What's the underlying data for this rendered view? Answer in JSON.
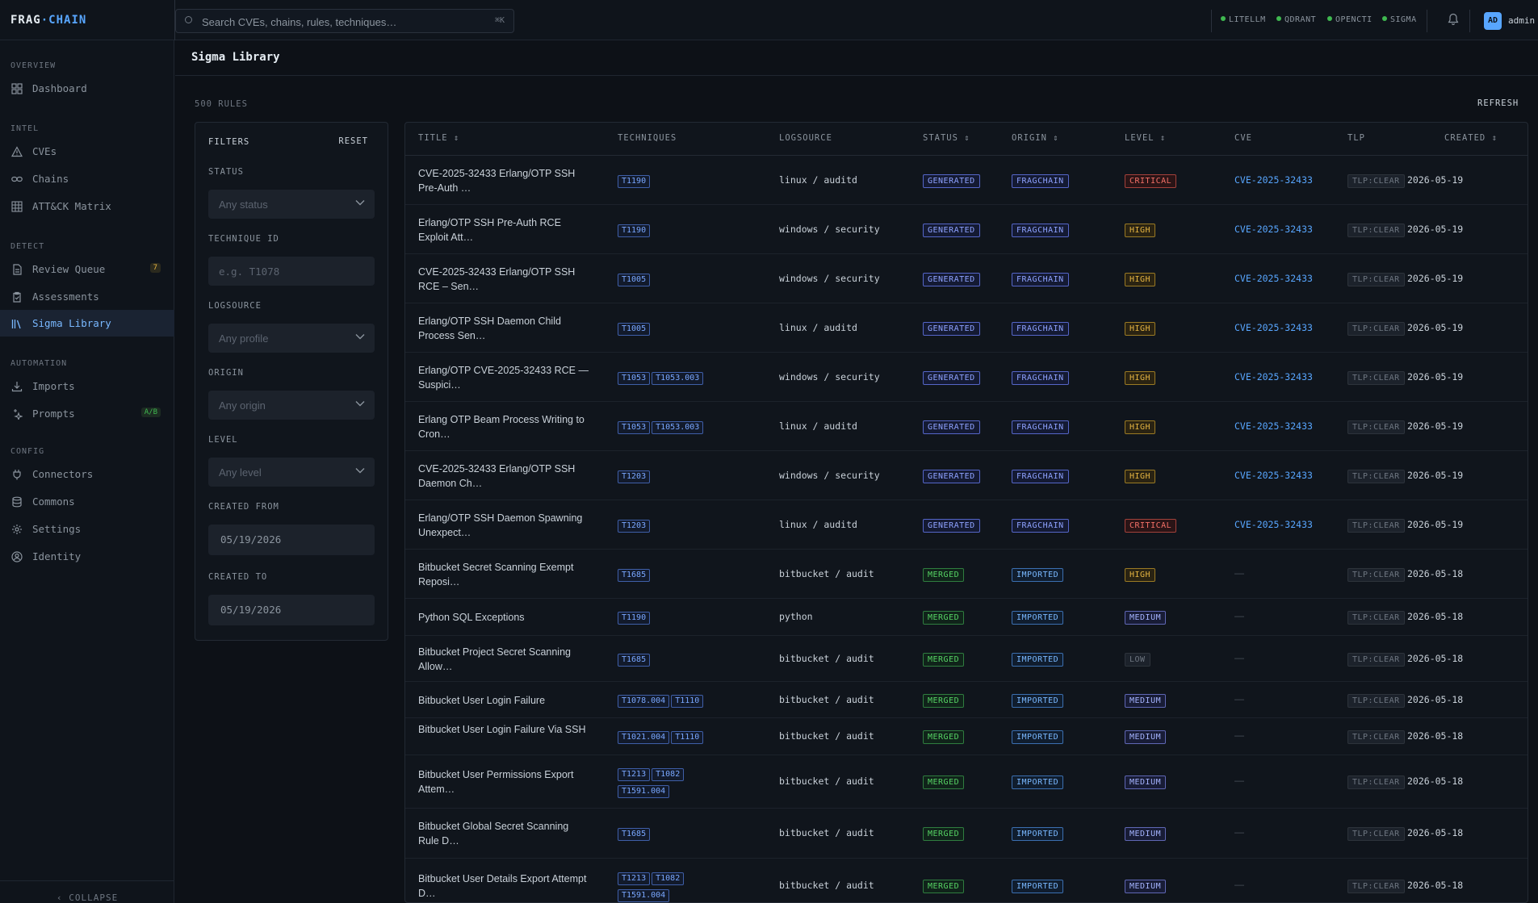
{
  "topbar": {
    "logo_part1": "FRAG",
    "logo_sep": "·",
    "logo_part2": "CHAIN",
    "search_placeholder": "Search CVEs, chains, rules, techniques…",
    "search_shortcut": "⌘K",
    "connectors": [
      {
        "label": "LITELLM",
        "status": "online"
      },
      {
        "label": "QDRANT",
        "status": "online"
      },
      {
        "label": "OPENCTI",
        "status": "online"
      },
      {
        "label": "SIGMA",
        "status": "online"
      }
    ],
    "user_initials": "AD",
    "user_name": "admin"
  },
  "sidebar": {
    "sections": [
      {
        "label": "OVERVIEW",
        "items": [
          {
            "label": "Dashboard",
            "icon": "grid-icon"
          }
        ]
      },
      {
        "label": "INTEL",
        "items": [
          {
            "label": "CVEs",
            "icon": "warning-triangle-icon"
          },
          {
            "label": "Chains",
            "icon": "link-icon"
          },
          {
            "label": "ATT&CK Matrix",
            "icon": "matrix-icon"
          }
        ]
      },
      {
        "label": "DETECT",
        "items": [
          {
            "label": "Review Queue",
            "icon": "document-icon",
            "badge": "7"
          },
          {
            "label": "Assessments",
            "icon": "clipboard-icon"
          },
          {
            "label": "Sigma Library",
            "icon": "library-icon",
            "active": true
          }
        ]
      },
      {
        "label": "AUTOMATION",
        "items": [
          {
            "label": "Imports",
            "icon": "download-icon"
          },
          {
            "label": "Prompts",
            "icon": "sparkle-icon",
            "badge": "A/B"
          }
        ]
      },
      {
        "label": "CONFIG",
        "items": [
          {
            "label": "Connectors",
            "icon": "plug-icon"
          },
          {
            "label": "Commons",
            "icon": "database-icon"
          },
          {
            "label": "Settings",
            "icon": "gear-icon"
          },
          {
            "label": "Identity",
            "icon": "user-circle-icon"
          }
        ]
      }
    ],
    "collapse_label": "‹ COLLAPSE"
  },
  "page": {
    "title": "Sigma Library",
    "rule_count": "500 RULES",
    "refresh_label": "REFRESH"
  },
  "filters": {
    "heading": "FILTERS",
    "reset_label": "RESET",
    "status_label": "STATUS",
    "status_placeholder": "Any status",
    "technique_label": "TECHNIQUE ID",
    "technique_placeholder": "e.g. T1078",
    "logsource_label": "LOGSOURCE",
    "logsource_placeholder": "Any profile",
    "origin_label": "ORIGIN",
    "origin_placeholder": "Any origin",
    "level_label": "LEVEL",
    "level_placeholder": "Any level",
    "created_from_label": "CREATED FROM",
    "created_from_value": "05/19/2026",
    "created_to_label": "CREATED TO",
    "created_to_value": "05/19/2026"
  },
  "table": {
    "columns": [
      "TITLE ⇕",
      "TECHNIQUES",
      "LOGSOURCE",
      "STATUS ⇕",
      "ORIGIN ⇕",
      "LEVEL ⇕",
      "CVE",
      "TLP",
      "CREATED ⇕"
    ],
    "rows": [
      {
        "title": "CVE-2025-32433 Erlang/OTP SSH Pre-Auth …",
        "techniques": [
          "T1190"
        ],
        "logsource": "linux / auditd",
        "status": "GENERATED",
        "origin": "FRAGCHAIN",
        "level": "CRITICAL",
        "cve": "CVE-2025-32433",
        "tlp": "TLP:CLEAR",
        "created": "2026-05-19"
      },
      {
        "title": "Erlang/OTP SSH Pre-Auth RCE Exploit Att…",
        "techniques": [
          "T1190"
        ],
        "logsource": "windows / security",
        "status": "GENERATED",
        "origin": "FRAGCHAIN",
        "level": "HIGH",
        "cve": "CVE-2025-32433",
        "tlp": "TLP:CLEAR",
        "created": "2026-05-19"
      },
      {
        "title": "CVE-2025-32433 Erlang/OTP SSH RCE – Sen…",
        "techniques": [
          "T1005"
        ],
        "logsource": "windows / security",
        "status": "GENERATED",
        "origin": "FRAGCHAIN",
        "level": "HIGH",
        "cve": "CVE-2025-32433",
        "tlp": "TLP:CLEAR",
        "created": "2026-05-19"
      },
      {
        "title": "Erlang/OTP SSH Daemon Child Process Sen…",
        "techniques": [
          "T1005"
        ],
        "logsource": "linux / auditd",
        "status": "GENERATED",
        "origin": "FRAGCHAIN",
        "level": "HIGH",
        "cve": "CVE-2025-32433",
        "tlp": "TLP:CLEAR",
        "created": "2026-05-19"
      },
      {
        "title": "Erlang/OTP CVE-2025-32433 RCE — Suspici…",
        "techniques": [
          "T1053",
          "T1053.003"
        ],
        "logsource": "windows / security",
        "status": "GENERATED",
        "origin": "FRAGCHAIN",
        "level": "HIGH",
        "cve": "CVE-2025-32433",
        "tlp": "TLP:CLEAR",
        "created": "2026-05-19"
      },
      {
        "title": "Erlang OTP Beam Process Writing to Cron…",
        "techniques": [
          "T1053",
          "T1053.003"
        ],
        "logsource": "linux / auditd",
        "status": "GENERATED",
        "origin": "FRAGCHAIN",
        "level": "HIGH",
        "cve": "CVE-2025-32433",
        "tlp": "TLP:CLEAR",
        "created": "2026-05-19"
      },
      {
        "title": "CVE-2025-32433 Erlang/OTP SSH Daemon Ch…",
        "techniques": [
          "T1203"
        ],
        "logsource": "windows / security",
        "status": "GENERATED",
        "origin": "FRAGCHAIN",
        "level": "HIGH",
        "cve": "CVE-2025-32433",
        "tlp": "TLP:CLEAR",
        "created": "2026-05-19"
      },
      {
        "title": "Erlang/OTP SSH Daemon Spawning Unexpect…",
        "techniques": [
          "T1203"
        ],
        "logsource": "linux / auditd",
        "status": "GENERATED",
        "origin": "FRAGCHAIN",
        "level": "CRITICAL",
        "cve": "CVE-2025-32433",
        "tlp": "TLP:CLEAR",
        "created": "2026-05-19"
      },
      {
        "title": "Bitbucket Secret Scanning Exempt Reposi…",
        "techniques": [
          "T1685"
        ],
        "logsource": "bitbucket / audit",
        "status": "MERGED",
        "origin": "IMPORTED",
        "level": "HIGH",
        "cve": "—",
        "tlp": "TLP:CLEAR",
        "created": "2026-05-18"
      },
      {
        "title": "Python SQL Exceptions",
        "techniques": [
          "T1190"
        ],
        "logsource": "python",
        "status": "MERGED",
        "origin": "IMPORTED",
        "level": "MEDIUM",
        "cve": "—",
        "tlp": "TLP:CLEAR",
        "created": "2026-05-18"
      },
      {
        "title": "Bitbucket Project Secret Scanning Allow…",
        "techniques": [
          "T1685"
        ],
        "logsource": "bitbucket / audit",
        "status": "MERGED",
        "origin": "IMPORTED",
        "level": "LOW",
        "cve": "—",
        "tlp": "TLP:CLEAR",
        "created": "2026-05-18"
      },
      {
        "title": "Bitbucket User Login Failure",
        "techniques": [
          "T1078.004",
          "T1110"
        ],
        "logsource": "bitbucket / audit",
        "status": "MERGED",
        "origin": "IMPORTED",
        "level": "MEDIUM",
        "cve": "—",
        "tlp": "TLP:CLEAR",
        "created": "2026-05-18"
      },
      {
        "title": "Bitbucket User Login Failure Via SSH",
        "techniques": [
          "T1021.004",
          "T1110"
        ],
        "logsource": "bitbucket / audit",
        "status": "MERGED",
        "origin": "IMPORTED",
        "level": "MEDIUM",
        "cve": "—",
        "tlp": "TLP:CLEAR",
        "created": "2026-05-18"
      },
      {
        "title": "Bitbucket User Permissions Export Attem…",
        "techniques": [
          "T1213",
          "T1082",
          "T1591.004"
        ],
        "logsource": "bitbucket / audit",
        "status": "MERGED",
        "origin": "IMPORTED",
        "level": "MEDIUM",
        "cve": "—",
        "tlp": "TLP:CLEAR",
        "created": "2026-05-18"
      },
      {
        "title": "Bitbucket Global Secret Scanning Rule D…",
        "techniques": [
          "T1685"
        ],
        "logsource": "bitbucket / audit",
        "status": "MERGED",
        "origin": "IMPORTED",
        "level": "MEDIUM",
        "cve": "—",
        "tlp": "TLP:CLEAR",
        "created": "2026-05-18"
      },
      {
        "title": "Bitbucket User Details Export Attempt D…",
        "techniques": [
          "T1213",
          "T1082",
          "T1591.004"
        ],
        "logsource": "bitbucket / audit",
        "status": "MERGED",
        "origin": "IMPORTED",
        "level": "MEDIUM",
        "cve": "—",
        "tlp": "TLP:CLEAR",
        "created": "2026-05-18"
      }
    ]
  }
}
